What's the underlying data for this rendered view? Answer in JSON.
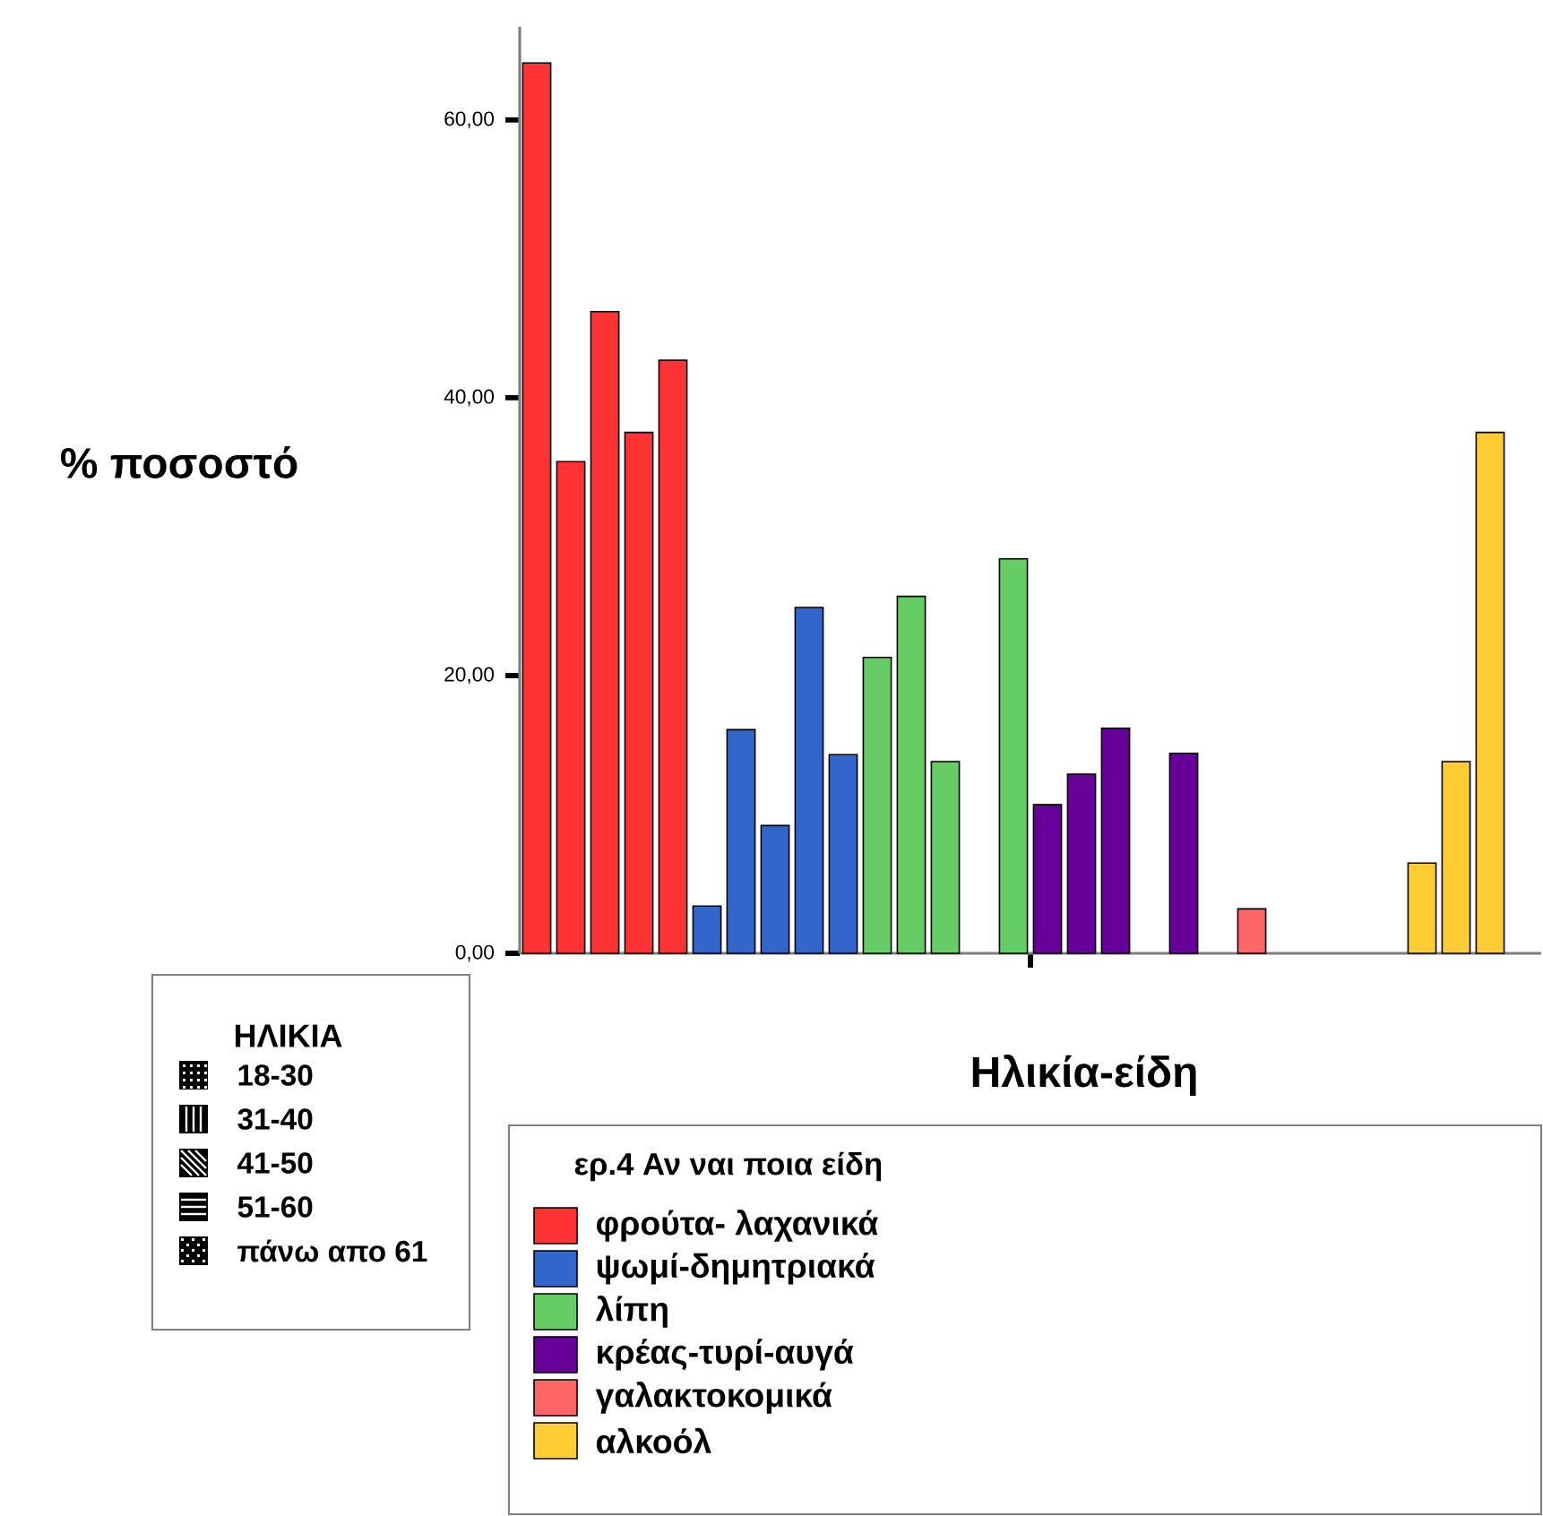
{
  "chart_data": {
    "type": "bar",
    "xlabel": "Ηλικία-είδη",
    "ylabel": "% ποσοστό",
    "legend_title": "ερ.4 Αν ναι ποια είδη",
    "legend": "bottom",
    "annotations": [
      "ΗΛΙΚΙΑ",
      "18-30",
      "31-40",
      "41-50",
      "51-60",
      "πάνω απο 61"
    ],
    "categories": [
      null,
      null,
      null,
      null,
      null,
      null,
      null,
      null,
      null,
      null,
      null,
      null,
      null,
      null,
      null,
      null,
      null,
      null,
      null,
      null,
      null,
      null,
      null,
      null,
      null,
      null,
      null,
      null,
      null,
      null
    ],
    "ylim": [
      0,
      66.7
    ],
    "yticks": [
      {
        "value": 0,
        "label": "0,00"
      },
      {
        "value": 20,
        "label": "20,00"
      },
      {
        "value": 40,
        "label": "40,00"
      },
      {
        "value": 60,
        "label": "60,00"
      }
    ],
    "series": [
      {
        "name": "φρούτα- λαχανικά",
        "color": "#ff3333",
        "values": [
          64.1,
          35.4,
          46.2,
          37.5,
          42.7,
          null,
          null,
          null,
          null,
          null,
          null,
          null,
          null,
          null,
          null,
          null,
          null,
          null,
          null,
          null,
          null,
          null,
          null,
          null,
          null,
          null,
          null,
          null,
          null,
          null
        ]
      },
      {
        "name": "ψωμί-δημητριακά",
        "color": "#3366cc",
        "values": [
          null,
          null,
          null,
          null,
          null,
          3.4,
          16.1,
          9.2,
          24.9,
          14.3,
          null,
          null,
          null,
          null,
          null,
          null,
          null,
          null,
          null,
          null,
          null,
          null,
          null,
          null,
          null,
          null,
          null,
          null,
          null,
          null
        ]
      },
      {
        "name": "λίπη",
        "color": "#66cc66",
        "values": [
          null,
          null,
          null,
          null,
          null,
          null,
          null,
          null,
          null,
          null,
          21.3,
          25.7,
          13.8,
          null,
          28.4,
          null,
          null,
          null,
          null,
          null,
          null,
          null,
          null,
          null,
          null,
          null,
          null,
          null,
          null,
          null
        ]
      },
      {
        "name": "κρέας-τυρί-αυγά",
        "color": "#660099",
        "values": [
          null,
          null,
          null,
          null,
          null,
          null,
          null,
          null,
          null,
          null,
          null,
          null,
          null,
          null,
          null,
          10.7,
          12.9,
          16.2,
          null,
          14.4,
          null,
          null,
          null,
          null,
          null,
          null,
          null,
          null,
          null,
          null
        ]
      },
      {
        "name": "γαλακτοκομικά",
        "color": "#ff6666",
        "values": [
          null,
          null,
          null,
          null,
          null,
          null,
          null,
          null,
          null,
          null,
          null,
          null,
          null,
          null,
          null,
          null,
          null,
          null,
          null,
          null,
          null,
          3.2,
          null,
          null,
          null,
          null,
          null,
          null,
          null,
          null
        ]
      },
      {
        "name": "αλκοόλ",
        "color": "#ffcc33",
        "values": [
          null,
          null,
          null,
          null,
          null,
          null,
          null,
          null,
          null,
          null,
          null,
          null,
          null,
          null,
          null,
          null,
          null,
          null,
          null,
          null,
          null,
          null,
          null,
          null,
          null,
          null,
          6.5,
          13.8,
          37.5,
          null
        ]
      }
    ]
  }
}
